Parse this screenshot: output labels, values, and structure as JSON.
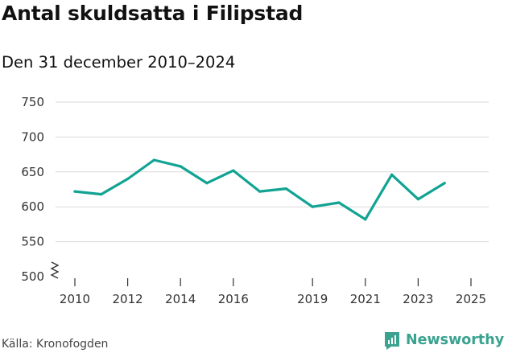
{
  "colors": {
    "line": "#12a393",
    "grid": "#d9d9d9",
    "brand": "#3aa28f"
  },
  "chart_data": {
    "type": "line",
    "title": "Antal skuldsatta i Filipstad",
    "subtitle": "Den 31 december 2010–2024",
    "x": [
      2010,
      2011,
      2012,
      2013,
      2014,
      2015,
      2016,
      2017,
      2018,
      2019,
      2020,
      2021,
      2022,
      2023,
      2024
    ],
    "values": [
      622,
      618,
      640,
      667,
      658,
      634,
      652,
      622,
      626,
      600,
      606,
      582,
      646,
      611,
      634
    ],
    "xlim": [
      2010,
      2025
    ],
    "x_ticks": [
      "2010",
      "2012",
      "2014",
      "2016",
      "2019",
      "2021",
      "2023",
      "2025"
    ],
    "ylim": [
      500,
      750
    ],
    "y_ticks": [
      "750",
      "700",
      "650",
      "600",
      "550",
      "500"
    ],
    "axis_break": true,
    "grid": true,
    "legend": "none"
  },
  "footer": {
    "source": "Källa: Kronofogden",
    "brand": "Newsworthy"
  }
}
